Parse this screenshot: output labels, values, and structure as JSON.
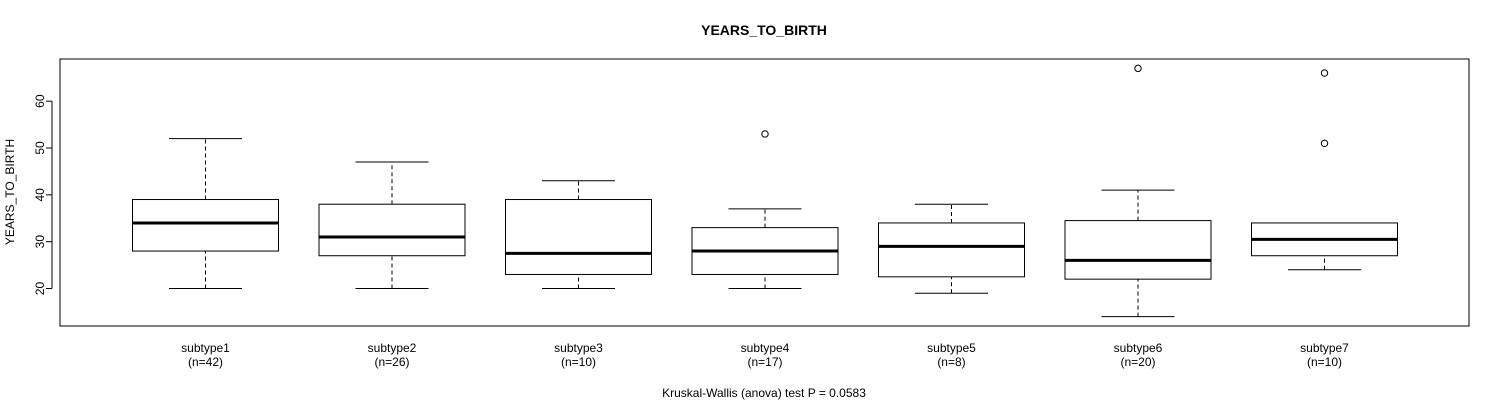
{
  "chart_data": {
    "type": "boxplot",
    "title": "YEARS_TO_BIRTH",
    "ylabel": "YEARS_TO_BIRTH",
    "xlabel": "Kruskal-Wallis (anova) test P = 0.0583",
    "ylim": [
      12,
      69
    ],
    "yticks": [
      20,
      30,
      40,
      50,
      60
    ],
    "categories": [
      "subtype1",
      "subtype2",
      "subtype3",
      "subtype4",
      "subtype5",
      "subtype6",
      "subtype7"
    ],
    "counts": [
      "(n=42)",
      "(n=26)",
      "(n=10)",
      "(n=17)",
      "(n=8)",
      "(n=20)",
      "(n=10)"
    ],
    "boxes": [
      {
        "whisker_low": 20,
        "q1": 28,
        "median": 34,
        "q3": 39,
        "whisker_high": 52,
        "outliers": []
      },
      {
        "whisker_low": 20,
        "q1": 27,
        "median": 31,
        "q3": 38,
        "whisker_high": 47,
        "outliers": []
      },
      {
        "whisker_low": 20,
        "q1": 23,
        "median": 27.5,
        "q3": 39,
        "whisker_high": 43,
        "outliers": []
      },
      {
        "whisker_low": 20,
        "q1": 23,
        "median": 28,
        "q3": 33,
        "whisker_high": 37,
        "outliers": [
          53
        ]
      },
      {
        "whisker_low": 19,
        "q1": 22.5,
        "median": 29,
        "q3": 34,
        "whisker_high": 38,
        "outliers": []
      },
      {
        "whisker_low": 14,
        "q1": 22,
        "median": 26,
        "q3": 34.5,
        "whisker_high": 41,
        "outliers": [
          67
        ]
      },
      {
        "whisker_low": 24,
        "q1": 27,
        "median": 30.5,
        "q3": 34,
        "whisker_high": 34,
        "outliers": [
          51,
          66
        ]
      }
    ],
    "grid": false
  }
}
